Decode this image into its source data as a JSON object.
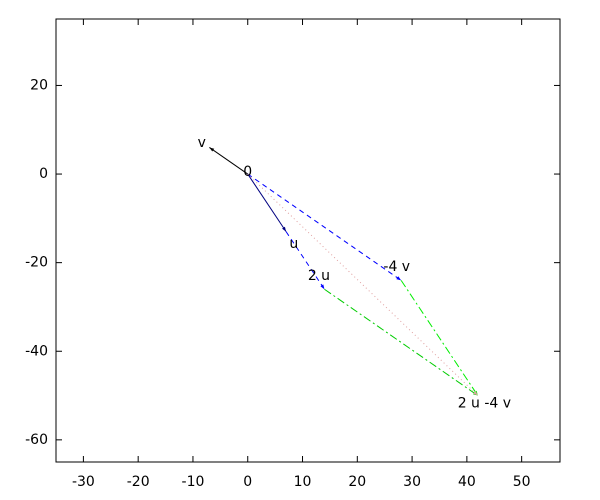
{
  "chart_data": {
    "type": "vector",
    "xlim": [
      -35,
      57
    ],
    "ylim": [
      -65,
      35
    ],
    "xticks": [
      -30,
      -20,
      -10,
      0,
      10,
      20,
      30,
      40,
      50
    ],
    "yticks": [
      -60,
      -40,
      -20,
      0,
      20
    ],
    "vectors": [
      {
        "from": [
          0,
          0
        ],
        "to": [
          -7,
          6
        ],
        "color": "#000000",
        "style": "solid"
      },
      {
        "from": [
          0,
          0
        ],
        "to": [
          7,
          -13
        ],
        "color": "#000080",
        "style": "solid"
      },
      {
        "from": [
          7,
          -13
        ],
        "to": [
          14,
          -26
        ],
        "color": "#0000ff",
        "style": "dashed"
      },
      {
        "from": [
          0,
          0
        ],
        "to": [
          28,
          -24
        ],
        "color": "#0000ff",
        "style": "dashed"
      },
      {
        "from": [
          14,
          -26
        ],
        "to": [
          42,
          -50
        ],
        "color": "#00cc00",
        "style": "dashdot"
      },
      {
        "from": [
          28,
          -24
        ],
        "to": [
          42,
          -50
        ],
        "color": "#00ee00",
        "style": "dashdot"
      },
      {
        "from": [
          0,
          0
        ],
        "to": [
          42,
          -50
        ],
        "color": "#e0a0a0",
        "style": "dotted"
      }
    ],
    "labels": [
      {
        "text": "v",
        "x": -8.4,
        "y": 7
      },
      {
        "text": "0",
        "x": 0,
        "y": 0.5
      },
      {
        "text": "u",
        "x": 8.4,
        "y": -15.8
      },
      {
        "text": "2 u",
        "x": 13,
        "y": -23
      },
      {
        "text": "-4 v",
        "x": 27.2,
        "y": -21
      },
      {
        "text": "2 u -4 v",
        "x": 43.2,
        "y": -51.8
      }
    ]
  }
}
